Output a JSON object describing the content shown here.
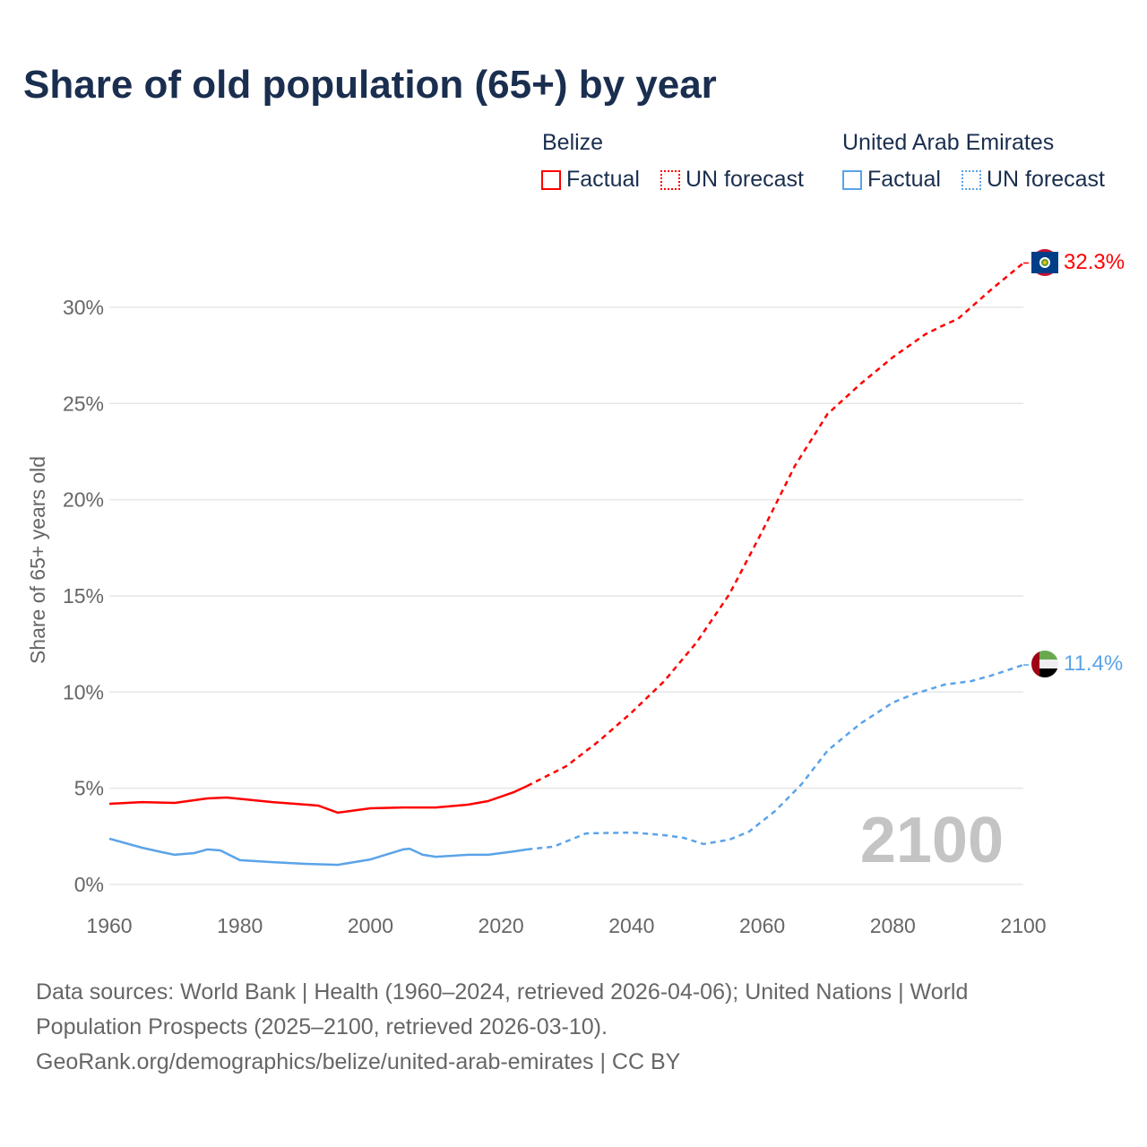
{
  "chart_data": {
    "type": "line",
    "title": "Share of old population (65+) by year",
    "ylabel": "Share of 65+ years old",
    "xlabel": "",
    "xlim": [
      1960,
      2100
    ],
    "ylim": [
      0,
      32.3
    ],
    "x_ticks": [
      "1960",
      "1980",
      "2000",
      "2020",
      "2040",
      "2060",
      "2080",
      "2100"
    ],
    "x_tick_values": [
      1960,
      1980,
      2000,
      2020,
      2040,
      2060,
      2080,
      2100
    ],
    "y_ticks": [
      "0%",
      "5%",
      "10%",
      "15%",
      "20%",
      "25%",
      "30%"
    ],
    "y_tick_values": [
      0,
      5,
      10,
      15,
      20,
      25,
      30
    ],
    "grid": true,
    "year_watermark": "2100",
    "legend": {
      "placement": "top-right",
      "groups": [
        {
          "name": "Belize",
          "items": [
            "Factual",
            "UN forecast"
          ],
          "color": "#ff0000"
        },
        {
          "name": "United Arab Emirates",
          "items": [
            "Factual",
            "UN forecast"
          ],
          "color": "#5ba3e8"
        }
      ]
    },
    "series": [
      {
        "name": "Belize",
        "color": "#ff0000",
        "end_label": "32.3%",
        "factual": [
          [
            1960,
            4.19
          ],
          [
            1965,
            4.28
          ],
          [
            1970,
            4.24
          ],
          [
            1975,
            4.47
          ],
          [
            1978,
            4.52
          ],
          [
            1985,
            4.28
          ],
          [
            1990,
            4.15
          ],
          [
            1992,
            4.1
          ],
          [
            1995,
            3.73
          ],
          [
            2000,
            3.96
          ],
          [
            2005,
            4.0
          ],
          [
            2010,
            4.0
          ],
          [
            2015,
            4.15
          ],
          [
            2018,
            4.33
          ],
          [
            2022,
            4.8
          ],
          [
            2024,
            5.12
          ]
        ],
        "forecast": [
          [
            2024,
            5.12
          ],
          [
            2030,
            6.15
          ],
          [
            2035,
            7.45
          ],
          [
            2040,
            8.94
          ],
          [
            2045,
            10.57
          ],
          [
            2050,
            12.6
          ],
          [
            2055,
            15.1
          ],
          [
            2060,
            18.35
          ],
          [
            2065,
            21.75
          ],
          [
            2070,
            24.45
          ],
          [
            2075,
            26.0
          ],
          [
            2080,
            27.4
          ],
          [
            2085,
            28.6
          ],
          [
            2088,
            29.1
          ],
          [
            2090,
            29.4
          ],
          [
            2095,
            30.9
          ],
          [
            2100,
            32.3
          ]
        ]
      },
      {
        "name": "United Arab Emirates",
        "color": "#5ba3e8",
        "end_label": "11.4%",
        "factual": [
          [
            1960,
            2.38
          ],
          [
            1965,
            1.91
          ],
          [
            1968,
            1.68
          ],
          [
            1970,
            1.54
          ],
          [
            1973,
            1.63
          ],
          [
            1975,
            1.82
          ],
          [
            1977,
            1.77
          ],
          [
            1980,
            1.26
          ],
          [
            1985,
            1.16
          ],
          [
            1990,
            1.07
          ],
          [
            1995,
            1.02
          ],
          [
            2000,
            1.3
          ],
          [
            2005,
            1.82
          ],
          [
            2006,
            1.86
          ],
          [
            2008,
            1.54
          ],
          [
            2010,
            1.44
          ],
          [
            2015,
            1.54
          ],
          [
            2018,
            1.54
          ],
          [
            2022,
            1.72
          ],
          [
            2024,
            1.82
          ]
        ],
        "forecast": [
          [
            2024,
            1.82
          ],
          [
            2028,
            1.96
          ],
          [
            2033,
            2.65
          ],
          [
            2040,
            2.7
          ],
          [
            2045,
            2.56
          ],
          [
            2048,
            2.42
          ],
          [
            2051,
            2.1
          ],
          [
            2055,
            2.33
          ],
          [
            2058,
            2.75
          ],
          [
            2062,
            3.82
          ],
          [
            2066,
            5.2
          ],
          [
            2070,
            6.95
          ],
          [
            2075,
            8.35
          ],
          [
            2080,
            9.45
          ],
          [
            2083,
            9.87
          ],
          [
            2088,
            10.39
          ],
          [
            2092,
            10.57
          ],
          [
            2095,
            10.85
          ],
          [
            2100,
            11.41
          ]
        ]
      }
    ]
  },
  "footer": {
    "line1": "Data sources: World Bank | Health (1960–2024, retrieved 2026-04-06); United Nations | World",
    "line2": "Population Prospects (2025–2100, retrieved 2026-03-10).",
    "line3": "GeoRank.org/demographics/belize/united-arab-emirates | CC BY"
  }
}
